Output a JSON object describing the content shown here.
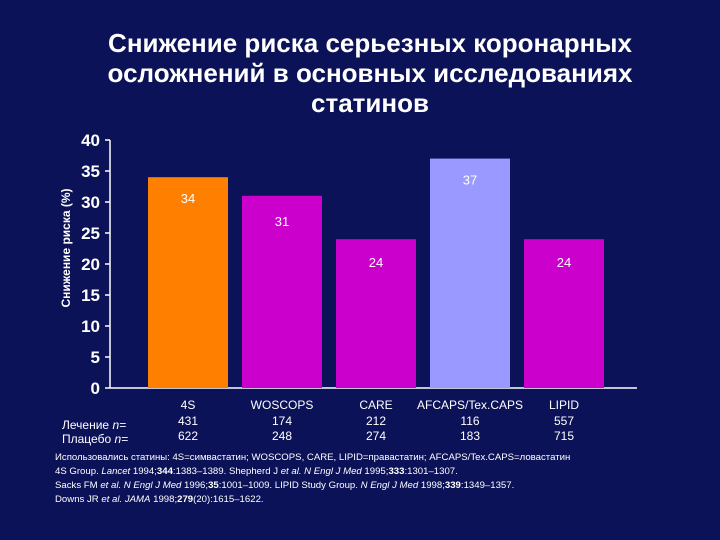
{
  "title": {
    "line1": "Снижение риска серьезных коронарных",
    "line2": "осложнений в основных исследованиях",
    "line3": "статинов"
  },
  "chart_data": {
    "type": "bar",
    "ylabel": "Снижение риска (%)",
    "ylim": [
      0,
      40
    ],
    "yticks": [
      0,
      5,
      10,
      15,
      20,
      25,
      30,
      35,
      40
    ],
    "categories": [
      "4S",
      "WOSCOPS",
      "CARE",
      "AFCAPS/Tex.CAPS",
      "LIPID"
    ],
    "values": [
      34,
      31,
      24,
      37,
      24
    ],
    "data_labels": [
      "34",
      "31",
      "24",
      "37",
      "24"
    ],
    "colors": [
      "#ff8000",
      "#cc00cc",
      "#cc00cc",
      "#9999ff",
      "#cc00cc"
    ],
    "treatment_label": "Лечение",
    "placebo_label": "Плацебо",
    "n_label": "n=",
    "treatment_n": [
      "431",
      "174",
      "212",
      "116",
      "557"
    ],
    "placebo_n": [
      "622",
      "248",
      "274",
      "183",
      "715"
    ],
    "grid": false
  },
  "references": {
    "line1": "Использовались статины: 4S=симвастатин; WOSCOPS, CARE, LIPID=правастатин; AFCAPS/Tex.CAPS=ловастатин",
    "line2_a": "4S Group. ",
    "line2_b": "Lancet",
    "line2_c": " 1994;",
    "line2_d": "344",
    "line2_e": ":1383–1389. Shepherd J ",
    "line2_f": "et al. N Engl J Med",
    "line2_g": " 1995;",
    "line2_h": "333",
    "line2_i": ":1301–1307.",
    "line3_a": "Sacks FM ",
    "line3_b": "et al. N Engl J Med",
    "line3_c": " 1996;",
    "line3_d": "35",
    "line3_e": ":1001–1009. LIPID Study Group. ",
    "line3_f": "N Engl J Med",
    "line3_g": " 1998;",
    "line3_h": "339",
    "line3_i": ":1349–1357.",
    "line4_a": "Downs JR ",
    "line4_b": "et al. JAMA",
    "line4_c": " 1998;",
    "line4_d": "279",
    "line4_e": "(20):1615–1622."
  }
}
